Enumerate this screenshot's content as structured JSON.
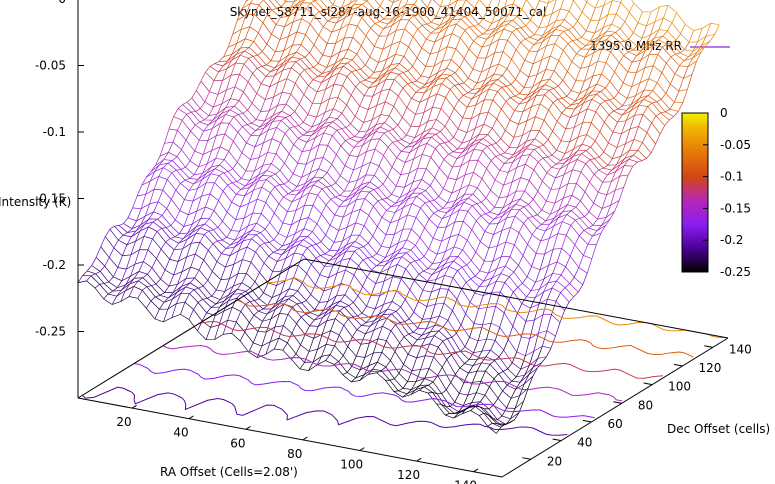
{
  "chart_data": {
    "type": "surface-3d",
    "title": "Skynet_58711_sl287-aug-16-1900_41404_50071_cal",
    "legend": {
      "label": "1395.0 MHz RR",
      "color": "#8b2be2",
      "placement": "top-right"
    },
    "zlabel": "Intensity (K)",
    "xlabel": "RA Offset (Cells=2.08')",
    "ylabel": "Dec Offset (cells)",
    "xlim": [
      1,
      150
    ],
    "ylim": [
      1,
      150
    ],
    "zlim": [
      -0.3,
      0
    ],
    "x_ticks": [
      "20",
      "40",
      "60",
      "80",
      "100",
      "120",
      "140"
    ],
    "y_ticks": [
      "20",
      "40",
      "60",
      "80",
      "100",
      "120",
      "140"
    ],
    "z_ticks": [
      "0",
      "-0.05",
      "-0.1",
      "-0.15",
      "-0.2",
      "-0.25"
    ],
    "colorbar": {
      "range": [
        -0.25,
        0
      ],
      "ticks": [
        "0",
        "-0.05",
        "-0.1",
        "-0.15",
        "-0.2",
        "-0.25"
      ],
      "palette": [
        "#000000",
        "#4b0096",
        "#8c1ef0",
        "#b428b4",
        "#d24614",
        "#e6780a",
        "#f0b400",
        "#f5f000"
      ]
    },
    "surface_corners": {
      "x1_y1": -0.22,
      "x150_y1": -0.255,
      "x1_y150": -0.035,
      "x150_y150": -0.065
    },
    "grid": true,
    "contours": true
  }
}
